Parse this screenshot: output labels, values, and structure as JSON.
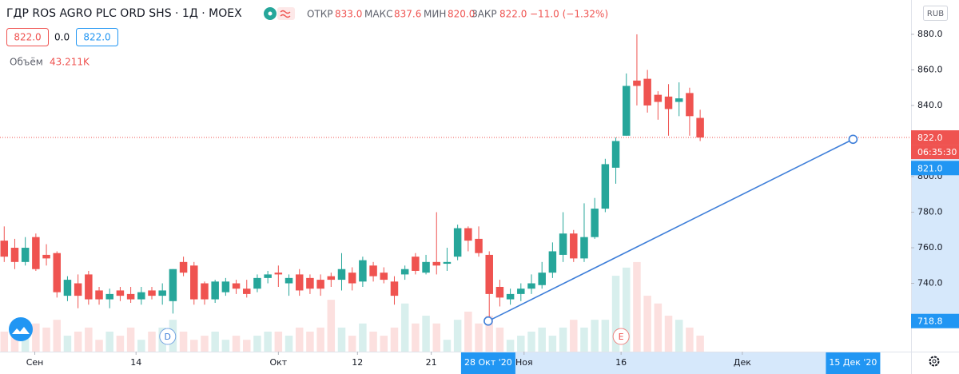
{
  "chart_data": {
    "type": "candlestick",
    "title": "ГДР ROS AGRO PLC ORD SHS · 1Д · MOEX",
    "legend_values": {
      "open_label": "ОТКР",
      "open": "833.0",
      "high_label": "МАКС",
      "high": "837.6",
      "low_label": "МИН",
      "low": "820.0",
      "close_label": "ЗАКР",
      "close": "822.0",
      "change": "−11.0 (−1.32%)"
    },
    "quote": {
      "bid": "822.0",
      "spread": "0.0",
      "ask": "822.0"
    },
    "currency": "RUB",
    "up_color": "#26a69a",
    "down_color": "#ef5350",
    "x": [
      0,
      1,
      2,
      3,
      4,
      5,
      6,
      7,
      8,
      9,
      10,
      11,
      12,
      13,
      14,
      15,
      16,
      17,
      18,
      19,
      20,
      21,
      22,
      23,
      24,
      25,
      26,
      27,
      28,
      29,
      30,
      31,
      32,
      33,
      34,
      35,
      36,
      37,
      38,
      39,
      40,
      41,
      42,
      43,
      44,
      45,
      46,
      47,
      48,
      49,
      50,
      51,
      52,
      53,
      54,
      55,
      56,
      57,
      58,
      59,
      60,
      61,
      62,
      63,
      64,
      65,
      66
    ],
    "ohlc": [
      [
        764,
        772,
        752,
        755
      ],
      [
        760,
        765,
        748,
        752
      ],
      [
        752,
        766,
        750,
        760
      ],
      [
        766,
        768,
        747,
        748
      ],
      [
        756,
        762,
        750,
        754
      ],
      [
        757,
        758,
        732,
        735
      ],
      [
        733,
        744,
        730,
        742
      ],
      [
        740,
        745,
        726,
        733
      ],
      [
        745,
        747,
        728,
        731
      ],
      [
        736,
        738,
        728,
        731
      ],
      [
        731,
        737,
        726,
        734
      ],
      [
        736,
        738,
        730,
        733
      ],
      [
        734,
        738,
        729,
        731
      ],
      [
        731,
        738,
        728,
        735
      ],
      [
        736,
        738,
        731,
        733
      ],
      [
        733,
        740,
        728,
        736
      ],
      [
        730,
        748,
        723,
        748
      ],
      [
        752,
        755,
        744,
        746
      ],
      [
        750,
        752,
        728,
        731
      ],
      [
        740,
        741,
        728,
        731
      ],
      [
        731,
        742,
        729,
        741
      ],
      [
        735,
        743,
        733,
        741
      ],
      [
        740,
        742,
        734,
        737
      ],
      [
        737,
        742,
        732,
        734
      ],
      [
        737,
        745,
        735,
        743
      ],
      [
        743,
        747,
        740,
        745
      ],
      [
        746,
        750,
        738,
        745
      ],
      [
        740,
        745,
        733,
        743
      ],
      [
        745,
        748,
        733,
        736
      ],
      [
        743,
        745,
        734,
        737
      ],
      [
        742,
        745,
        733,
        737
      ],
      [
        744,
        746,
        738,
        742
      ],
      [
        742,
        757,
        736,
        748
      ],
      [
        746,
        749,
        736,
        740
      ],
      [
        741,
        755,
        738,
        753
      ],
      [
        750,
        752,
        741,
        744
      ],
      [
        746,
        749,
        740,
        742
      ],
      [
        741,
        744,
        728,
        733
      ],
      [
        745,
        750,
        742,
        748
      ],
      [
        755,
        757,
        745,
        747
      ],
      [
        746,
        756,
        745,
        752
      ],
      [
        752,
        780,
        745,
        750
      ],
      [
        751,
        760,
        747,
        752
      ],
      [
        755,
        773,
        753,
        771
      ],
      [
        771,
        772,
        758,
        764
      ],
      [
        765,
        772,
        755,
        757
      ],
      [
        756,
        758,
        718.8,
        734
      ],
      [
        738,
        742,
        727,
        732
      ],
      [
        731,
        737,
        728,
        734
      ],
      [
        734,
        740,
        730,
        737
      ],
      [
        737,
        745,
        734,
        740
      ],
      [
        739,
        752,
        737,
        746
      ],
      [
        746,
        763,
        743,
        758
      ],
      [
        756,
        780,
        752,
        768
      ],
      [
        768,
        770,
        752,
        754
      ],
      [
        754,
        785,
        752,
        766
      ],
      [
        766,
        788,
        765,
        782
      ],
      [
        782,
        810,
        780,
        807
      ],
      [
        805,
        822,
        796,
        820
      ],
      [
        823,
        858,
        823,
        851
      ],
      [
        854,
        880,
        840,
        851
      ],
      [
        855,
        860,
        836,
        840
      ],
      [
        846,
        848,
        832,
        842
      ],
      [
        845,
        852,
        823,
        838
      ],
      [
        842,
        853,
        834,
        844
      ],
      [
        847,
        850,
        823,
        834
      ],
      [
        833.0,
        837.6,
        820.0,
        822.0
      ]
    ],
    "volume": {
      "name": "Объём",
      "values": [
        54,
        65,
        43,
        76,
        65,
        86,
        43,
        54,
        65,
        32,
        54,
        43,
        65,
        32,
        54,
        65,
        86,
        54,
        32,
        43,
        54,
        32,
        43,
        32,
        43,
        54,
        54,
        43,
        65,
        54,
        65,
        140,
        65,
        43,
        76,
        54,
        43,
        65,
        130,
        76,
        97,
        76,
        32,
        86,
        108,
        76,
        97,
        65,
        32,
        43,
        54,
        65,
        43,
        65,
        86,
        65,
        86,
        86,
        205,
        227,
        242,
        151,
        130,
        97,
        86,
        65,
        43.211
      ],
      "value_labels": {
        "66": "43.211K"
      },
      "lim": [
        0,
        950
      ]
    },
    "xlim": [
      -0.4,
      86
    ],
    "xticks": [
      {
        "value": 2.9,
        "label": "Сен"
      },
      {
        "value": 12.5,
        "label": "14"
      },
      {
        "value": 26,
        "label": "Окт"
      },
      {
        "value": 33.5,
        "label": "12"
      },
      {
        "value": 40.5,
        "label": "21"
      },
      {
        "value": 45.9,
        "label": "28 Окт '20",
        "highlight": true
      },
      {
        "value": 49.3,
        "label": "Ноя"
      },
      {
        "value": 58.5,
        "label": "16"
      },
      {
        "value": 70,
        "label": "Дек"
      },
      {
        "value": 80.5,
        "label": "15 Дек '20",
        "highlight": true
      }
    ],
    "ylim": [
      701.6,
      899.3
    ],
    "yticks": [
      {
        "value": 740,
        "label": "740.0"
      },
      {
        "value": 760,
        "label": "760.0"
      },
      {
        "value": 780,
        "label": "780.0"
      },
      {
        "value": 800,
        "label": "800.0"
      },
      {
        "value": 840,
        "label": "840.0"
      },
      {
        "value": 860,
        "label": "860.0"
      },
      {
        "value": 880,
        "label": "880.0"
      }
    ],
    "current_price": {
      "value": 822.0,
      "label": "822.0",
      "countdown": "06:35:30",
      "color": "#ef5350"
    },
    "trendline": {
      "x": [
        45.9,
        80.5
      ],
      "y": [
        718.8,
        821.0
      ],
      "y_labels": [
        "718.8",
        "821.0"
      ],
      "color": "#3f7fd9"
    },
    "events": [
      {
        "x": 15.5,
        "label": "D",
        "color": "#3f7fd9"
      },
      {
        "x": 58.5,
        "label": "E",
        "color": "#ef5350"
      }
    ]
  }
}
